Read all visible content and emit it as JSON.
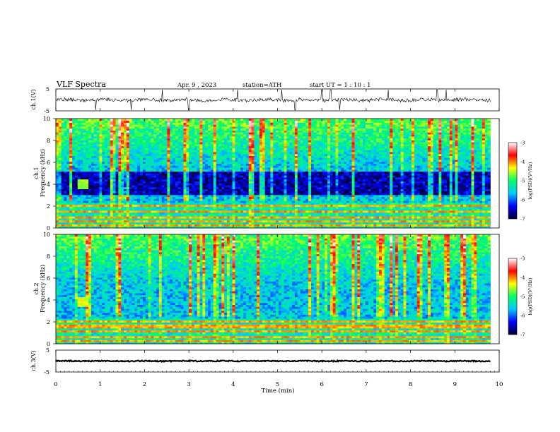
{
  "header": {
    "title": "VLF Spectra",
    "date": "Apr. 9 , 2023",
    "station": "station=ATH",
    "start": "start UT = 1 : 10 : 1"
  },
  "chart_data": [
    {
      "type": "line",
      "panel": "ch1-waveform",
      "ylabel": "ch.1(V)",
      "ylim": [
        -5,
        5
      ],
      "ytick_labels": [
        "5",
        "-5"
      ],
      "xlim": [
        0,
        10
      ],
      "baseline": 0,
      "noise_amplitude": 0.8,
      "spikes_up": [
        0.9,
        2.4,
        4.1,
        5.1,
        6.0,
        6.2,
        7.5,
        8.6,
        8.8
      ],
      "spikes_down": [
        0.9,
        1.7,
        3.0,
        5.4,
        6.4
      ]
    },
    {
      "type": "heatmap",
      "panel": "ch1-spectrogram",
      "ylabel": "ch.1 Frequency (kHz)",
      "xlim": [
        0,
        9.8
      ],
      "ylim": [
        0,
        10
      ],
      "yticks": [
        0,
        2,
        4,
        6,
        8,
        10
      ],
      "colorbar": {
        "label": "log(PSD)(V²/Hz)",
        "ticks": [
          -3,
          -4,
          -5,
          -6,
          -7
        ],
        "range": [
          -7,
          -3
        ]
      },
      "features": {
        "tone_burst": {
          "t": [
            0.5,
            0.75
          ],
          "f": [
            3.5,
            4.4
          ],
          "level": -4.6
        },
        "band_dark_khz": [
          3.0,
          5.2
        ],
        "line_bands_khz": [
          2.0,
          1.5,
          1.0,
          0.6,
          0.2
        ]
      }
    },
    {
      "type": "heatmap",
      "panel": "ch2-spectrogram",
      "ylabel": "ch.2 Frequency (kHz)",
      "xlim": [
        0,
        9.8
      ],
      "ylim": [
        0,
        10
      ],
      "yticks": [
        0,
        2,
        4,
        6,
        8,
        10
      ],
      "colorbar": {
        "label": "log(PSD)(V²/Hz)",
        "ticks": [
          -3,
          -4,
          -5,
          -6,
          -7
        ],
        "range": [
          -7,
          -3
        ]
      },
      "features": {
        "tone_burst": {
          "t": [
            0.5,
            0.75
          ],
          "f": [
            3.4,
            4.2
          ],
          "level": -4.4
        },
        "line_bands_khz": [
          2.0,
          1.6,
          1.2,
          0.7,
          0.3
        ]
      }
    },
    {
      "type": "line",
      "panel": "ch3-waveform",
      "ylabel": "ch.3(V)",
      "ylim": [
        -5,
        5
      ],
      "ytick_labels": [
        "5",
        "-5"
      ],
      "xlim": [
        0,
        10
      ],
      "baseline": 0,
      "noise_amplitude": 0.25
    }
  ],
  "x_axis": {
    "label": "Time (min)",
    "ticks": [
      "0",
      "1",
      "2",
      "3",
      "4",
      "5",
      "6",
      "7",
      "8",
      "9",
      "10"
    ]
  },
  "colors": {
    "colormap": [
      "#000033",
      "#0000ff",
      "#00c8ff",
      "#00ff66",
      "#ffff00",
      "#ff0000",
      "#ffffff"
    ]
  }
}
